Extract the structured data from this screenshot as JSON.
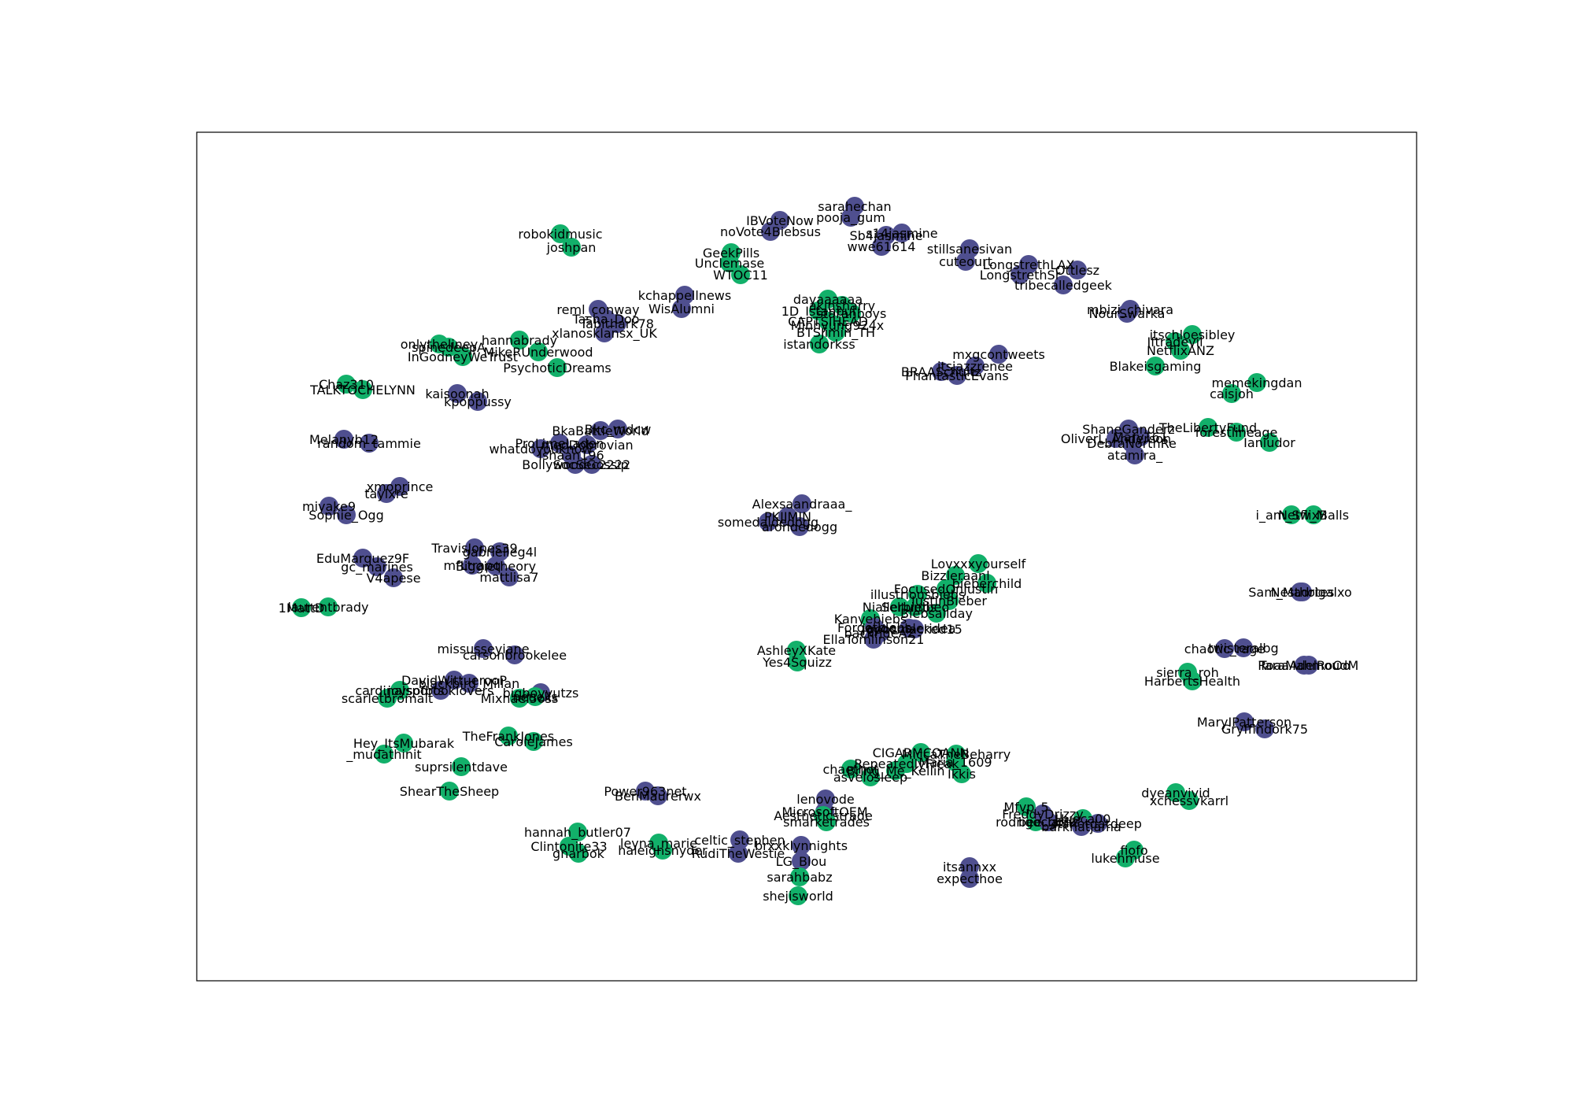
{
  "colors": {
    "green": "#12b06a",
    "purple": "#4f4f8f",
    "frame": "#000000",
    "background": "#ffffff"
  },
  "nodes": [
    {
      "label": "robokidmusic",
      "c": "green"
    },
    {
      "label": "joshpan",
      "c": "green"
    },
    {
      "label": "GeekPills",
      "c": "green"
    },
    {
      "label": "Unclemase",
      "c": "green"
    },
    {
      "label": "WTOC11",
      "c": "green"
    },
    {
      "label": "IBVoteNow",
      "c": "purple"
    },
    {
      "label": "noVote4Biebsus",
      "c": "purple"
    },
    {
      "label": "sarahechan",
      "c": "purple"
    },
    {
      "label": "pooja_gum",
      "c": "purple"
    },
    {
      "label": "Sb4jasmine",
      "c": "purple"
    },
    {
      "label": "s14jasmine",
      "c": "purple"
    },
    {
      "label": "wwe61614",
      "c": "purple"
    },
    {
      "label": "stillsanesivan",
      "c": "purple"
    },
    {
      "label": "cuteourt",
      "c": "purple"
    },
    {
      "label": "LongstrethLAX",
      "c": "purple"
    },
    {
      "label": "LongstrethSr",
      "c": "purple"
    },
    {
      "label": "Ottlesz",
      "c": "purple"
    },
    {
      "label": "tribecalledgeek",
      "c": "purple"
    },
    {
      "label": "kchappellnews",
      "c": "purple"
    },
    {
      "label": "WisAlumni",
      "c": "purple"
    },
    {
      "label": "reml_conway",
      "c": "purple"
    },
    {
      "label": "Tabithark78",
      "c": "purple"
    },
    {
      "label": "Tasha_Doo",
      "c": "purple"
    },
    {
      "label": "xlanosklansx_UK",
      "c": "purple"
    },
    {
      "label": "dayaaaaaa",
      "c": "green"
    },
    {
      "label": "akinsharry",
      "c": "green"
    },
    {
      "label": "1D_Istanbul",
      "c": "green"
    },
    {
      "label": "staranboys",
      "c": "green"
    },
    {
      "label": "CAPTSIHEAD",
      "c": "green"
    },
    {
      "label": "Minhyung924x",
      "c": "green"
    },
    {
      "label": "BTSJimin_TH",
      "c": "green"
    },
    {
      "label": "istandorkss",
      "c": "green"
    },
    {
      "label": "mbizi_chivara",
      "c": "purple"
    },
    {
      "label": "NourSwarka",
      "c": "purple"
    },
    {
      "label": "hannabrady",
      "c": "green"
    },
    {
      "label": "onlytheliney",
      "c": "green"
    },
    {
      "label": "spinedeepA",
      "c": "green"
    },
    {
      "label": "InGodneyWeTrust",
      "c": "green"
    },
    {
      "label": "MikeRUnderwood",
      "c": "green"
    },
    {
      "label": "PsychoticDreams",
      "c": "green"
    },
    {
      "label": "itschloesibley",
      "c": "green"
    },
    {
      "label": "Iftradevil",
      "c": "green"
    },
    {
      "label": "NetflixANZ",
      "c": "green"
    },
    {
      "label": "Blakeisgaming",
      "c": "green"
    },
    {
      "label": "mxgcontweets",
      "c": "purple"
    },
    {
      "label": "itsjazzrenee",
      "c": "purple"
    },
    {
      "label": "BRAASchultz",
      "c": "purple"
    },
    {
      "label": "PhantasticEvans",
      "c": "purple"
    },
    {
      "label": "Chaz310",
      "c": "green"
    },
    {
      "label": "TALKTOCHELYNN",
      "c": "green"
    },
    {
      "label": "memekingdan",
      "c": "green"
    },
    {
      "label": "caisjoh",
      "c": "green"
    },
    {
      "label": "kaisoonah",
      "c": "purple"
    },
    {
      "label": "kpoppussy",
      "c": "purple"
    },
    {
      "label": "BkaBattleWorld",
      "c": "purple"
    },
    {
      "label": "Bkc_mdcw",
      "c": "purple"
    },
    {
      "label": "whatdoyouknow",
      "c": "purple"
    },
    {
      "label": "ProLimeLaden",
      "c": "purple"
    },
    {
      "label": "meoDobrovian",
      "c": "purple"
    },
    {
      "label": "Ishaan196",
      "c": "purple"
    },
    {
      "label": "BollywoodGossip",
      "c": "purple"
    },
    {
      "label": "SocSec2222",
      "c": "purple"
    },
    {
      "label": "ShaneGanderz",
      "c": "purple"
    },
    {
      "label": "OliverL_Anderson",
      "c": "purple"
    },
    {
      "label": "DebraNorthRe",
      "c": "purple"
    },
    {
      "label": "MaryT61",
      "c": "purple"
    },
    {
      "label": "atamira_",
      "c": "purple"
    },
    {
      "label": "TheLibertyFund",
      "c": "green"
    },
    {
      "label": "forestlineage",
      "c": "green"
    },
    {
      "label": "Ianiudor",
      "c": "green"
    },
    {
      "label": "Melanyb12",
      "c": "purple"
    },
    {
      "label": "random_tammie",
      "c": "purple"
    },
    {
      "label": "Alexsaandraaa_",
      "c": "purple"
    },
    {
      "label": "PKJIMIN",
      "c": "purple"
    },
    {
      "label": "somedaldedogg",
      "c": "purple"
    },
    {
      "label": "arondedogg",
      "c": "purple"
    },
    {
      "label": "xmoprince",
      "c": "purple"
    },
    {
      "label": "taylxre",
      "c": "purple"
    },
    {
      "label": "miyake9",
      "c": "purple"
    },
    {
      "label": "Sophie_Ogg",
      "c": "purple"
    },
    {
      "label": "i_am_Sw_M",
      "c": "green"
    },
    {
      "label": "NetflixBalls",
      "c": "green"
    },
    {
      "label": "TravisJones39",
      "c": "purple"
    },
    {
      "label": "gabrielleg4l",
      "c": "purple"
    },
    {
      "label": "EduMarquez9F",
      "c": "purple"
    },
    {
      "label": "gc_marines",
      "c": "purple"
    },
    {
      "label": "V4apese",
      "c": "purple"
    },
    {
      "label": "mfLtrapq",
      "c": "purple"
    },
    {
      "label": "Biggietheory",
      "c": "purple"
    },
    {
      "label": "mattlisa7",
      "c": "purple"
    },
    {
      "label": "Lovxxxyourself",
      "c": "green"
    },
    {
      "label": "Bizzleraanl",
      "c": "green"
    },
    {
      "label": "FocusedOnJustin",
      "c": "green"
    },
    {
      "label": "bieberchild",
      "c": "green"
    },
    {
      "label": "illustriousbiebs",
      "c": "green"
    },
    {
      "label": "JustinBieber",
      "c": "green"
    },
    {
      "label": "Seltumbeo",
      "c": "green"
    },
    {
      "label": "Niallerbiebs",
      "c": "green"
    },
    {
      "label": "Biebsallday",
      "c": "green"
    },
    {
      "label": "Kanyebiebs",
      "c": "green"
    },
    {
      "label": "Forgetbiebs",
      "c": "purple"
    },
    {
      "label": "jaydoubleridea",
      "c": "purple"
    },
    {
      "label": "backrideAZ",
      "c": "purple"
    },
    {
      "label": "gobsmacked15",
      "c": "purple"
    },
    {
      "label": "EllaTomlinson21",
      "c": "purple"
    },
    {
      "label": "AshleyXKate",
      "c": "green"
    },
    {
      "label": "Yes4Squizz",
      "c": "green"
    },
    {
      "label": "Sam_Madrigalxo",
      "c": "purple"
    },
    {
      "label": "Nesthotes",
      "c": "purple"
    },
    {
      "label": "1MattD",
      "c": "green"
    },
    {
      "label": "laurentbrady",
      "c": "green"
    },
    {
      "label": "missusseyiane",
      "c": "purple"
    },
    {
      "label": "carsonbrookelee",
      "c": "purple"
    },
    {
      "label": "DavidWittuerooP",
      "c": "purple"
    },
    {
      "label": "blackbird_Millan",
      "c": "purple"
    },
    {
      "label": "joysofbooklovers",
      "c": "purple"
    },
    {
      "label": "bigboyyutzs",
      "c": "purple"
    },
    {
      "label": "Mixhael5oss",
      "c": "green"
    },
    {
      "label": "neuells",
      "c": "green"
    },
    {
      "label": "cardinalsports",
      "c": "green"
    },
    {
      "label": "scarletbromalt",
      "c": "green"
    },
    {
      "label": "chaotic_rage",
      "c": "purple"
    },
    {
      "label": "twisteralbg",
      "c": "purple"
    },
    {
      "label": "RoaaAdelRoOo",
      "c": "purple"
    },
    {
      "label": "TaraMahmoudM",
      "c": "purple"
    },
    {
      "label": "sierra_roh",
      "c": "green"
    },
    {
      "label": "HarbertsHealth",
      "c": "green"
    },
    {
      "label": "MaryIPatterson",
      "c": "purple"
    },
    {
      "label": "Gryffindork75",
      "c": "purple"
    },
    {
      "label": "Hey_ItsMubarak",
      "c": "green"
    },
    {
      "label": "_mudathinit",
      "c": "green"
    },
    {
      "label": "TheFrankJones",
      "c": "green"
    },
    {
      "label": "CaroleJames",
      "c": "green"
    },
    {
      "label": "suprsilentdave",
      "c": "green"
    },
    {
      "label": "ShearTheSheep",
      "c": "green"
    },
    {
      "label": "CIGARMCQANN",
      "c": "green"
    },
    {
      "label": "MiccaTheBeharry",
      "c": "green"
    },
    {
      "label": "asvelosleep",
      "c": "green"
    },
    {
      "label": "RepeatedlyFreak",
      "c": "green"
    },
    {
      "label": "Maria_1609",
      "c": "green"
    },
    {
      "label": "Ikkis",
      "c": "green"
    },
    {
      "label": "Bring_Me_Kellin",
      "c": "green"
    },
    {
      "label": "chaethot",
      "c": "green"
    },
    {
      "label": "lenovode",
      "c": "purple"
    },
    {
      "label": "MicrosoftOEM",
      "c": "purple"
    },
    {
      "label": "Hueca00",
      "c": "green"
    },
    {
      "label": "rodrigoclaclz",
      "c": "green"
    },
    {
      "label": "Mfvp_5",
      "c": "green"
    },
    {
      "label": "bee_gonz",
      "c": "purple"
    },
    {
      "label": "FreddyDrizzy",
      "c": "purple"
    },
    {
      "label": "Itsnotdatdeep",
      "c": "purple"
    },
    {
      "label": "barkhatjama",
      "c": "purple"
    },
    {
      "label": "dyeanvivid",
      "c": "green"
    },
    {
      "label": "xchessvkarrl",
      "c": "green"
    },
    {
      "label": "Power963net",
      "c": "purple"
    },
    {
      "label": "BenMaurerwx",
      "c": "purple"
    },
    {
      "label": "Aestheticstrade",
      "c": "green"
    },
    {
      "label": "smarketrades",
      "c": "green"
    },
    {
      "label": "hannah_butler07",
      "c": "green"
    },
    {
      "label": "Clintonite33",
      "c": "green"
    },
    {
      "label": "gnarbok",
      "c": "green"
    },
    {
      "label": "leyna_marie",
      "c": "green"
    },
    {
      "label": "haleighsnyder",
      "c": "green"
    },
    {
      "label": "celtic_stephen",
      "c": "purple"
    },
    {
      "label": "RudiTheWestie",
      "c": "purple"
    },
    {
      "label": "brxxklynnights",
      "c": "purple"
    },
    {
      "label": "LG_Blou",
      "c": "purple"
    },
    {
      "label": "sarahbabz",
      "c": "green"
    },
    {
      "label": "shejisworld",
      "c": "green"
    },
    {
      "label": "fiofo",
      "c": "green"
    },
    {
      "label": "lukehmuse",
      "c": "green"
    },
    {
      "label": "itsannxx",
      "c": "purple"
    },
    {
      "label": "expecthoe",
      "c": "purple"
    }
  ]
}
